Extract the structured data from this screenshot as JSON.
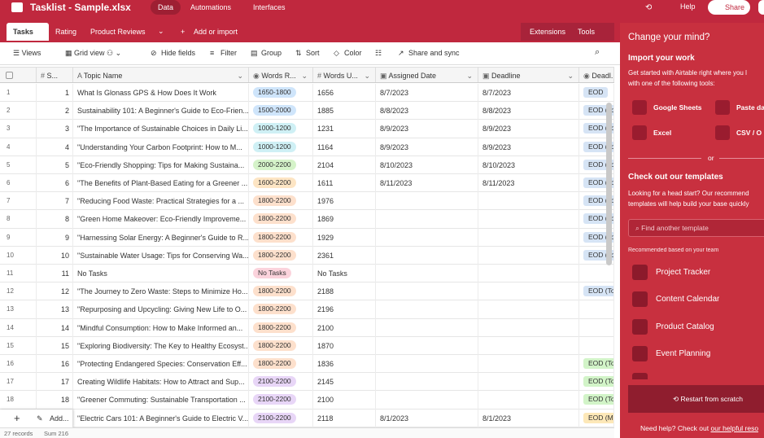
{
  "header": {
    "title": "Tasklist - Sample.xlsx",
    "tabs": [
      "Data",
      "Automations",
      "Interfaces"
    ],
    "help": "Help",
    "share": "Share"
  },
  "table_tabs": {
    "tabs": [
      "Tasks",
      "Rating",
      "Product Reviews"
    ],
    "add": "Add or import",
    "extensions": "Extensions",
    "tools": "Tools"
  },
  "toolbar": {
    "views": "Views",
    "grid_view": "Grid view",
    "items": [
      "Hide fields",
      "Filter",
      "Group",
      "Sort",
      "Color",
      "Share and sync"
    ]
  },
  "table": {
    "columns": [
      "S...",
      "Topic Name",
      "Words R...",
      "Words U...",
      "Assigned Date",
      "Deadline",
      "Deadl..."
    ],
    "rows": [
      {
        "n": 1,
        "num": 1,
        "topic": "What Is Glonass GPS & How Does It Work",
        "range": {
          "text": "1650-1800",
          "color": "#cfe5fb"
        },
        "words": 1656,
        "assigned": "8/7/2023",
        "deadline": "8/7/2023",
        "deadl": {
          "text": "EOD",
          "color": "#d6e4f5"
        }
      },
      {
        "n": 2,
        "num": 2,
        "topic": "Sustainability 101: A Beginner's Guide to Eco-Frien...",
        "range": {
          "text": "1500-2000",
          "color": "#cfe5fb"
        },
        "words": 1885,
        "assigned": "8/8/2023",
        "deadline": "8/8/2023",
        "deadl": {
          "text": "EOD (To",
          "color": "#d6e4f5"
        }
      },
      {
        "n": 3,
        "num": 3,
        "topic": "\"The Importance of Sustainable Choices in Daily Li...",
        "range": {
          "text": "1000-1200",
          "color": "#cff0f5"
        },
        "words": 1231,
        "assigned": "8/9/2023",
        "deadline": "8/9/2023",
        "deadl": {
          "text": "EOD (To",
          "color": "#d6e4f5"
        }
      },
      {
        "n": 4,
        "num": 4,
        "topic": "\"Understanding Your Carbon Footprint: How to M...",
        "range": {
          "text": "1000-1200",
          "color": "#cff0f5"
        },
        "words": 1164,
        "assigned": "8/9/2023",
        "deadline": "8/9/2023",
        "deadl": {
          "text": "EOD (To",
          "color": "#d6e4f5"
        }
      },
      {
        "n": 5,
        "num": 5,
        "topic": "\"Eco-Friendly Shopping: Tips for Making Sustaina...",
        "range": {
          "text": "2000-2200",
          "color": "#d5f3c9"
        },
        "words": 2104,
        "assigned": "8/10/2023",
        "deadline": "8/10/2023",
        "deadl": {
          "text": "EOD (To",
          "color": "#d6e4f5"
        }
      },
      {
        "n": 6,
        "num": 6,
        "topic": "\"The Benefits of Plant-Based Eating for a Greener ...",
        "range": {
          "text": "1600-2200",
          "color": "#fde5c4"
        },
        "words": 1611,
        "assigned": "8/11/2023",
        "deadline": "8/11/2023",
        "deadl": {
          "text": "EOD (To",
          "color": "#d6e4f5"
        }
      },
      {
        "n": 7,
        "num": 7,
        "topic": "\"Reducing Food Waste: Practical Strategies for a ...",
        "range": {
          "text": "1800-2200",
          "color": "#fde0cc"
        },
        "words": 1976,
        "assigned": null,
        "deadline": null,
        "deadl": {
          "text": "EOD (To",
          "color": "#d6e4f5"
        }
      },
      {
        "n": 8,
        "num": 8,
        "topic": "\"Green Home Makeover: Eco-Friendly Improveme...",
        "range": {
          "text": "1800-2200",
          "color": "#fde0cc"
        },
        "words": 1869,
        "assigned": null,
        "deadline": null,
        "deadl": {
          "text": "EOD (To",
          "color": "#d6e4f5"
        }
      },
      {
        "n": 9,
        "num": 9,
        "topic": "\"Harnessing Solar Energy: A Beginner's Guide to R...",
        "range": {
          "text": "1800-2200",
          "color": "#fde0cc"
        },
        "words": 1929,
        "assigned": null,
        "deadline": null,
        "deadl": {
          "text": "EOD (To",
          "color": "#d6e4f5"
        }
      },
      {
        "n": 10,
        "num": 10,
        "topic": "\"Sustainable Water Usage: Tips for Conserving Wa...",
        "range": {
          "text": "1800-2200",
          "color": "#fde0cc"
        },
        "words": 2361,
        "assigned": null,
        "deadline": null,
        "deadl": {
          "text": "EOD (To",
          "color": "#d6e4f5"
        }
      },
      {
        "n": 11,
        "num": 11,
        "topic": "No Tasks",
        "range": {
          "text": "No Tasks",
          "color": "#fbd3dc"
        },
        "words": "No Tasks",
        "assigned": null,
        "deadline": null,
        "deadl": null
      },
      {
        "n": 12,
        "num": 12,
        "topic": "\"The Journey to Zero Waste: Steps to Minimize Ho...",
        "range": {
          "text": "1800-2200",
          "color": "#fde0cc"
        },
        "words": 2188,
        "assigned": null,
        "deadline": null,
        "deadl": {
          "text": "EOD (To",
          "color": "#d6e4f5"
        }
      },
      {
        "n": 13,
        "num": 13,
        "topic": "\"Repurposing and Upcycling: Giving New Life to O...",
        "range": {
          "text": "1800-2200",
          "color": "#fde0cc"
        },
        "words": 2196,
        "assigned": null,
        "deadline": null,
        "deadl": null
      },
      {
        "n": 14,
        "num": 14,
        "topic": "\"Mindful Consumption: How to Make Informed an...",
        "range": {
          "text": "1800-2200",
          "color": "#fde0cc"
        },
        "words": 2100,
        "assigned": null,
        "deadline": null,
        "deadl": null
      },
      {
        "n": 15,
        "num": 15,
        "topic": "\"Exploring Biodiversity: The Key to Healthy Ecosyst...",
        "range": {
          "text": "1800-2200",
          "color": "#fde0cc"
        },
        "words": 1870,
        "assigned": null,
        "deadline": null,
        "deadl": null
      },
      {
        "n": 16,
        "num": 16,
        "topic": "\"Protecting Endangered Species: Conservation Eff...",
        "range": {
          "text": "1800-2200",
          "color": "#fde0cc"
        },
        "words": 1836,
        "assigned": null,
        "deadline": null,
        "deadl": {
          "text": "EOD (To",
          "color": "#d2f4c8"
        }
      },
      {
        "n": 17,
        "num": 17,
        "topic": "Creating Wildlife Habitats: How to Attract and Sup...",
        "range": {
          "text": "2100-2200",
          "color": "#e8d6f7"
        },
        "words": 2145,
        "assigned": null,
        "deadline": null,
        "deadl": {
          "text": "EOD (To",
          "color": "#d2f4c8"
        }
      },
      {
        "n": 18,
        "num": 18,
        "topic": "\"Greener Commuting: Sustainable Transportation ...",
        "range": {
          "text": "2100-2200",
          "color": "#e8d6f7"
        },
        "words": 2100,
        "assigned": null,
        "deadline": null,
        "deadl": {
          "text": "EOD (To",
          "color": "#d2f4c8"
        }
      },
      {
        "n": null,
        "num": null,
        "topic": "\"Electric Cars 101: A Beginner's Guide to Electric V...",
        "range": {
          "text": "2100-2200",
          "color": "#e8d6f7"
        },
        "words": 2118,
        "assigned": "8/1/2023",
        "deadline": "8/1/2023",
        "deadl": {
          "text": "EOD (Mo",
          "color": "#fde8b8"
        }
      }
    ]
  },
  "add_row": "Add...",
  "footer": {
    "records": "27 records",
    "sum": "Sum 216"
  },
  "panel": {
    "title": "Change your mind?",
    "import_heading": "Import your work",
    "import_text": [
      "Get started with Airtable right where you l",
      "with one of the following tools:"
    ],
    "tools": [
      "Google Sheets",
      "Paste da",
      "Excel",
      "CSV / O"
    ],
    "or": "or",
    "templates_heading": "Check out our templates",
    "templates_text": [
      "Looking for a head start? Our recommend",
      "templates will help build your base quickly"
    ],
    "search": "Find another template",
    "recommended": "Recommended based on your team",
    "templates": [
      "Project Tracker",
      "Content Calendar",
      "Product Catalog",
      "Event Planning"
    ],
    "restart": "Restart from scratch",
    "help_text": "Need help? Check out ",
    "help_link": "our helpful reso"
  }
}
